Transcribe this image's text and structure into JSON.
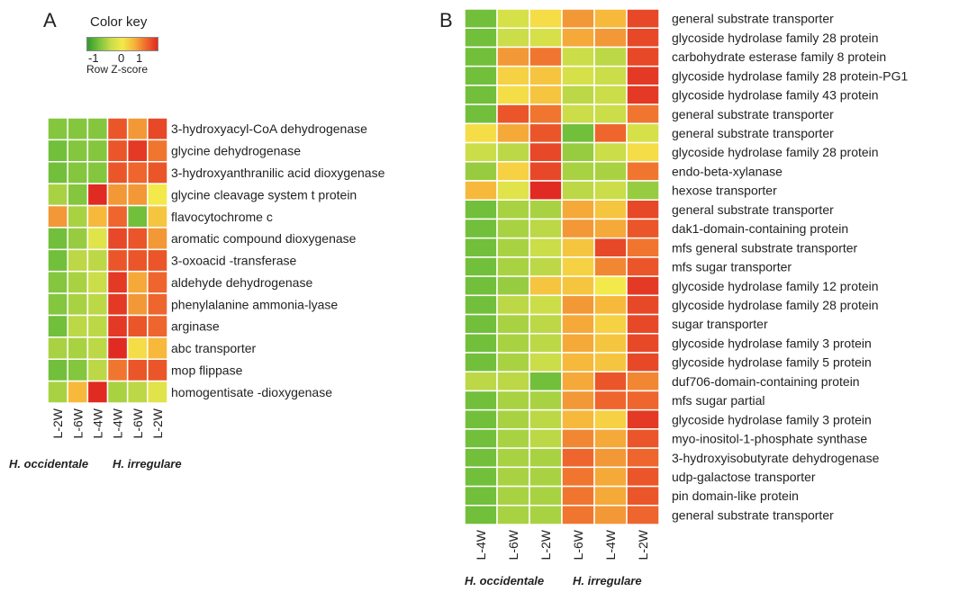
{
  "panels": {
    "a": "A",
    "b": "B"
  },
  "color_key": {
    "title": "Color key",
    "ticks": [
      "-1",
      "0",
      "1"
    ],
    "subtitle": "Row Z-score",
    "colors": [
      "#2f9a2f",
      "#78c23c",
      "#c8dc48",
      "#f4e94a",
      "#f6b53b",
      "#ef6a2e",
      "#e02a22"
    ]
  },
  "chart_data": [
    {
      "type": "heatmap",
      "panel": "A",
      "columns": [
        "L-2W",
        "L-6W",
        "L-4W",
        "L-4W",
        "L-6W",
        "L-2W"
      ],
      "groups": [
        {
          "name": "H. occidentale",
          "columns": [
            0,
            1,
            2
          ]
        },
        {
          "name": "H. irregulare",
          "columns": [
            3,
            4,
            5
          ]
        }
      ],
      "rows": [
        "3-hydroxyacyl-CoA dehydrogenase",
        "glycine dehydrogenase",
        "3-hydroxyanthranilic acid dioxygenase",
        "glycine cleavage system t protein",
        "flavocytochrome c",
        "aromatic compound dioxygenase",
        "3-oxoacid -transferase",
        "aldehyde dehydrogenase",
        "phenylalanine ammonia-lyase",
        "arginase",
        "abc transporter",
        "mop flippase",
        "homogentisate -dioxygenase"
      ],
      "values": [
        [
          -0.8,
          -0.8,
          -0.8,
          1.0,
          0.6,
          1.1
        ],
        [
          -0.9,
          -0.8,
          -0.8,
          1.0,
          1.2,
          0.8
        ],
        [
          -0.9,
          -0.8,
          -0.8,
          1.0,
          0.9,
          1.0
        ],
        [
          -0.6,
          -0.8,
          1.3,
          0.6,
          0.6,
          0.0
        ],
        [
          0.6,
          -0.6,
          0.4,
          0.9,
          -0.9,
          0.3
        ],
        [
          -0.9,
          -0.7,
          -0.2,
          1.1,
          1.0,
          0.6
        ],
        [
          -0.9,
          -0.5,
          -0.5,
          1.0,
          1.0,
          1.0
        ],
        [
          -0.8,
          -0.6,
          -0.4,
          1.2,
          0.5,
          0.9
        ],
        [
          -0.8,
          -0.6,
          -0.5,
          1.2,
          0.6,
          0.9
        ],
        [
          -0.9,
          -0.5,
          -0.5,
          1.2,
          1.0,
          0.9
        ],
        [
          -0.6,
          -0.6,
          -0.5,
          1.3,
          0.1,
          0.4
        ],
        [
          -0.9,
          -0.8,
          -0.5,
          0.8,
          1.0,
          1.0
        ],
        [
          -0.6,
          0.4,
          1.3,
          -0.6,
          -0.5,
          -0.2
        ]
      ],
      "zlim": [
        -1.3,
        1.3
      ]
    },
    {
      "type": "heatmap",
      "panel": "B",
      "columns": [
        "L-4W",
        "L-6W",
        "L-2W",
        "L-6W",
        "L-4W",
        "L-2W"
      ],
      "groups": [
        {
          "name": "H. occidentale",
          "columns": [
            0,
            1,
            2
          ]
        },
        {
          "name": "H. irregulare",
          "columns": [
            3,
            4,
            5
          ]
        }
      ],
      "rows": [
        "general substrate transporter",
        "glycoside hydrolase family 28 protein",
        "carbohydrate esterase family 8 protein",
        "glycoside hydrolase family 28 protein-PG1",
        "glycoside hydrolase family 43 protein",
        "general substrate transporter",
        "general substrate transporter",
        "glycoside hydrolase family 28 protein",
        "endo-beta-xylanase",
        "hexose transporter",
        "general substrate transporter",
        "dak1-domain-containing protein",
        "mfs general substrate transporter",
        "mfs sugar transporter",
        "glycoside hydrolase family 12 protein",
        "glycoside hydrolase family 28 protein",
        "sugar transporter",
        "glycoside hydrolase family 3 protein",
        "glycoside hydrolase family 5 protein",
        "duf706-domain-containing protein",
        "mfs sugar partial",
        "glycoside hydrolase family 3 protein",
        "myo-inositol-1-phosphate synthase",
        "3-hydroxyisobutyrate dehydrogenase",
        "udp-galactose transporter",
        "pin domain-like protein",
        "general substrate transporter"
      ],
      "values": [
        [
          -0.9,
          -0.3,
          0.1,
          0.6,
          0.4,
          1.1
        ],
        [
          -0.9,
          -0.4,
          -0.3,
          0.5,
          0.6,
          1.1
        ],
        [
          -0.9,
          0.6,
          0.8,
          -0.4,
          -0.5,
          1.1
        ],
        [
          -0.9,
          0.2,
          0.3,
          -0.3,
          -0.4,
          1.2
        ],
        [
          -0.9,
          0.1,
          0.3,
          -0.5,
          -0.4,
          1.2
        ],
        [
          -0.9,
          1.0,
          0.8,
          -0.4,
          -0.4,
          0.8
        ],
        [
          0.1,
          0.5,
          1.0,
          -0.9,
          0.9,
          -0.3
        ],
        [
          -0.4,
          -0.5,
          1.1,
          -0.7,
          -0.4,
          0.1
        ],
        [
          -0.7,
          0.2,
          1.1,
          -0.6,
          -0.6,
          0.8
        ],
        [
          0.4,
          -0.2,
          1.3,
          -0.5,
          -0.4,
          -0.7
        ],
        [
          -0.9,
          -0.6,
          -0.6,
          0.5,
          0.3,
          1.1
        ],
        [
          -0.9,
          -0.6,
          -0.5,
          0.6,
          0.5,
          1.0
        ],
        [
          -0.9,
          -0.6,
          -0.4,
          0.3,
          1.1,
          0.8
        ],
        [
          -0.9,
          -0.6,
          -0.5,
          0.2,
          0.7,
          1.0
        ],
        [
          -0.9,
          -0.7,
          0.3,
          0.3,
          0.0,
          1.2
        ],
        [
          -0.9,
          -0.5,
          -0.4,
          0.6,
          0.4,
          1.1
        ],
        [
          -0.9,
          -0.6,
          -0.5,
          0.5,
          0.2,
          1.1
        ],
        [
          -0.9,
          -0.6,
          -0.5,
          0.5,
          0.3,
          1.1
        ],
        [
          -0.9,
          -0.6,
          -0.4,
          0.4,
          0.3,
          1.1
        ],
        [
          -0.5,
          -0.5,
          -0.9,
          0.5,
          1.0,
          0.7
        ],
        [
          -0.9,
          -0.6,
          -0.6,
          0.6,
          0.9,
          0.9
        ],
        [
          -0.9,
          -0.6,
          -0.5,
          0.4,
          0.2,
          1.2
        ],
        [
          -0.9,
          -0.6,
          -0.5,
          0.7,
          0.5,
          1.0
        ],
        [
          -0.9,
          -0.6,
          -0.6,
          0.9,
          0.6,
          0.9
        ],
        [
          -0.9,
          -0.6,
          -0.6,
          0.8,
          0.5,
          1.0
        ],
        [
          -0.9,
          -0.6,
          -0.6,
          0.8,
          0.5,
          1.0
        ],
        [
          -0.9,
          -0.6,
          -0.6,
          0.8,
          0.6,
          0.9
        ]
      ],
      "zlim": [
        -1.3,
        1.3
      ]
    }
  ]
}
